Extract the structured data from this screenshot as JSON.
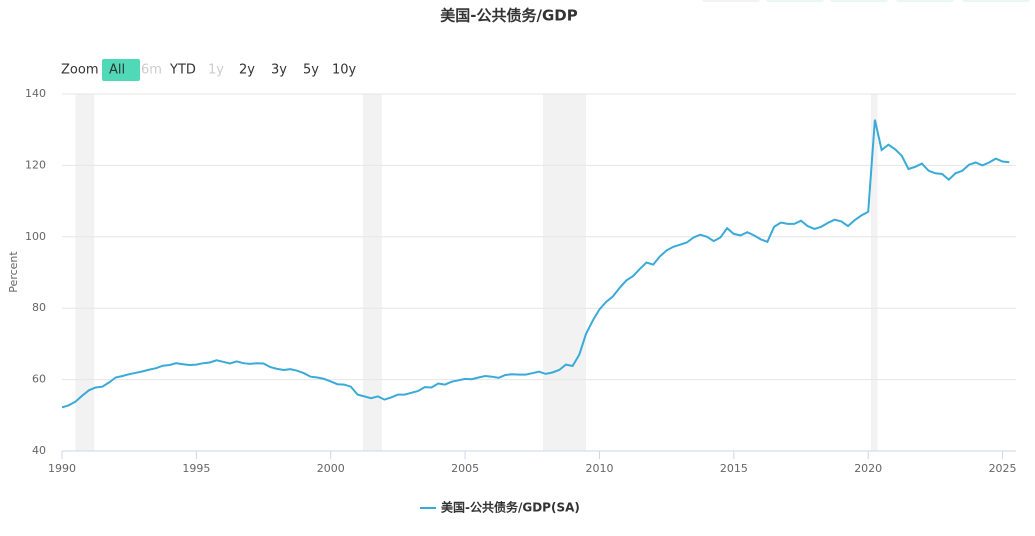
{
  "chart_data": {
    "type": "line",
    "title": "美国-公共债务/GDP",
    "y_label": "Percent",
    "range_selector": {
      "label": "Zoom",
      "buttons": [
        "All",
        "6m",
        "YTD",
        "1y",
        "2y",
        "3y",
        "5y",
        "10y"
      ],
      "selected": 0,
      "disabled": [
        1,
        3
      ]
    },
    "xlim": [
      1990,
      2025.5
    ],
    "xticks": [
      1990,
      1995,
      2000,
      2005,
      2010,
      2015,
      2020,
      2025
    ],
    "ylim": [
      40,
      140
    ],
    "yticks": [
      40,
      60,
      80,
      100,
      120,
      140
    ],
    "grid": true,
    "recessions": [
      [
        1990.5,
        1991.2
      ],
      [
        2001.2,
        2001.9
      ],
      [
        2007.9,
        2009.5
      ],
      [
        2020.1,
        2020.35
      ]
    ],
    "x": [
      1990,
      1990.25,
      1990.5,
      1990.75,
      1991,
      1991.25,
      1991.5,
      1991.75,
      1992,
      1992.25,
      1992.5,
      1992.75,
      1993,
      1993.25,
      1993.5,
      1993.75,
      1994,
      1994.25,
      1994.5,
      1994.75,
      1995,
      1995.25,
      1995.5,
      1995.75,
      1996,
      1996.25,
      1996.5,
      1996.75,
      1997,
      1997.25,
      1997.5,
      1997.75,
      1998,
      1998.25,
      1998.5,
      1998.75,
      1999,
      1999.25,
      1999.5,
      1999.75,
      2000,
      2000.25,
      2000.5,
      2000.75,
      2001,
      2001.25,
      2001.5,
      2001.75,
      2002,
      2002.25,
      2002.5,
      2002.75,
      2003,
      2003.25,
      2003.5,
      2003.75,
      2004,
      2004.25,
      2004.5,
      2004.75,
      2005,
      2005.25,
      2005.5,
      2005.75,
      2006,
      2006.25,
      2006.5,
      2006.75,
      2007,
      2007.25,
      2007.5,
      2007.75,
      2008,
      2008.25,
      2008.5,
      2008.75,
      2009,
      2009.25,
      2009.5,
      2009.75,
      2010,
      2010.25,
      2010.5,
      2010.75,
      2011,
      2011.25,
      2011.5,
      2011.75,
      2012,
      2012.25,
      2012.5,
      2012.75,
      2013,
      2013.25,
      2013.5,
      2013.75,
      2014,
      2014.25,
      2014.5,
      2014.75,
      2015,
      2015.25,
      2015.5,
      2015.75,
      2016,
      2016.25,
      2016.5,
      2016.75,
      2017,
      2017.25,
      2017.5,
      2017.75,
      2018,
      2018.25,
      2018.5,
      2018.75,
      2019,
      2019.25,
      2019.5,
      2019.75,
      2020,
      2020.25,
      2020.5,
      2020.75,
      2021,
      2021.25,
      2021.5,
      2021.75,
      2022,
      2022.25,
      2022.5,
      2022.75,
      2023,
      2023.25,
      2023.5,
      2023.75,
      2024,
      2024.25,
      2024.5,
      2024.75,
      2025,
      2025.25
    ],
    "series": [
      {
        "name": "美国-公共债务/GDP(SA)",
        "color": "#3aaad8",
        "values": [
          52.2,
          52.8,
          53.8,
          55.5,
          57,
          57.8,
          58,
          59.2,
          60.6,
          61,
          61.5,
          61.9,
          62.3,
          62.8,
          63.2,
          63.9,
          64.1,
          64.6,
          64.3,
          64.1,
          64.2,
          64.6,
          64.8,
          65.4,
          65,
          64.5,
          65.1,
          64.6,
          64.4,
          64.6,
          64.5,
          63.5,
          63,
          62.7,
          62.9,
          62.5,
          61.8,
          60.8,
          60.6,
          60.2,
          59.5,
          58.7,
          58.6,
          58,
          55.8,
          55.3,
          54.8,
          55.3,
          54.4,
          55,
          55.8,
          55.8,
          56.3,
          56.8,
          57.9,
          57.8,
          58.9,
          58.6,
          59.4,
          59.8,
          60.2,
          60.1,
          60.6,
          61,
          60.8,
          60.5,
          61.3,
          61.5,
          61.4,
          61.4,
          61.8,
          62.2,
          61.6,
          62,
          62.7,
          64.2,
          63.8,
          67,
          72.8,
          76.5,
          79.7,
          81.8,
          83.3,
          85.7,
          87.8,
          89,
          91,
          92.8,
          92.2,
          94.5,
          96.2,
          97.2,
          97.8,
          98.4,
          99.8,
          100.6,
          100,
          98.8,
          99.8,
          102.4,
          100.8,
          100.4,
          101.3,
          100.4,
          99.3,
          98.6,
          102.8,
          104,
          103.6,
          103.6,
          104.5,
          103,
          102.2,
          102.8,
          103.9,
          104.8,
          104.3,
          103,
          104.7,
          106,
          107,
          132.8,
          124.3,
          125.8,
          124.5,
          122.7,
          119,
          119.6,
          120.5,
          118.5,
          117.8,
          117.6,
          116,
          117.8,
          118.5,
          120.2,
          120.8,
          120,
          120.8,
          121.9,
          121.1,
          120.9
        ]
      }
    ]
  }
}
